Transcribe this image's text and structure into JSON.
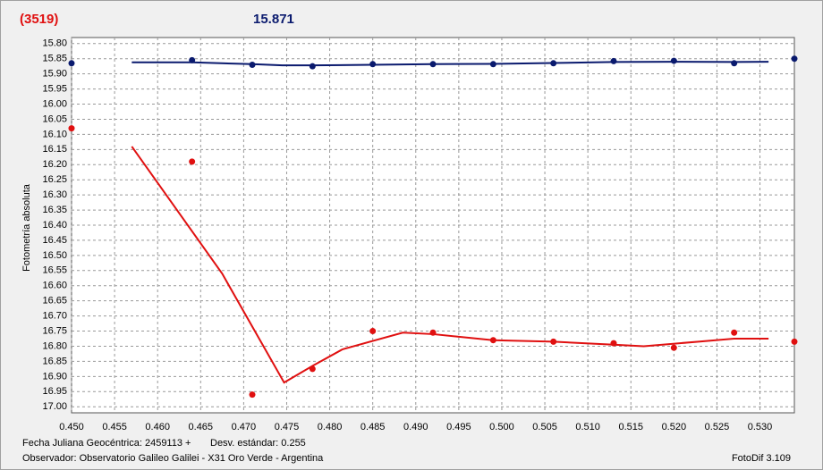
{
  "chart_data": {
    "type": "scatter-line",
    "header": {
      "object": "(3519)",
      "magnitude": "15.871"
    },
    "ylabel": "Fotometría absoluta",
    "footer": {
      "date_label": "Fecha Juliana Geocéntrica: 2459113 +",
      "std": "Desv. estándar: 0.255",
      "observer": "Observador: Observatorio Galileo Galilei - X31 Oro Verde - Argentina",
      "software": "FotoDif 3.109"
    },
    "xlim": [
      0.45,
      0.534
    ],
    "ylim": [
      15.78,
      17.02
    ],
    "y_inverted": true,
    "grid": true,
    "xticks": [
      {
        "value": 0.45,
        "label": "0.450"
      },
      {
        "value": 0.455,
        "label": "0.455"
      },
      {
        "value": 0.46,
        "label": "0.460"
      },
      {
        "value": 0.465,
        "label": "0.465"
      },
      {
        "value": 0.47,
        "label": "0.470"
      },
      {
        "value": 0.475,
        "label": "0.475"
      },
      {
        "value": 0.48,
        "label": "0.480"
      },
      {
        "value": 0.485,
        "label": "0.485"
      },
      {
        "value": 0.49,
        "label": "0.490"
      },
      {
        "value": 0.495,
        "label": "0.495"
      },
      {
        "value": 0.5,
        "label": "0.500"
      },
      {
        "value": 0.505,
        "label": "0.505"
      },
      {
        "value": 0.51,
        "label": "0.510"
      },
      {
        "value": 0.515,
        "label": "0.515"
      },
      {
        "value": 0.52,
        "label": "0.520"
      },
      {
        "value": 0.525,
        "label": "0.525"
      },
      {
        "value": 0.53,
        "label": "0.530"
      }
    ],
    "yticks": [
      {
        "value": 15.8,
        "label": "15.80"
      },
      {
        "value": 15.85,
        "label": "15.85"
      },
      {
        "value": 15.9,
        "label": "15.90"
      },
      {
        "value": 15.95,
        "label": "15.95"
      },
      {
        "value": 16.0,
        "label": "16.00"
      },
      {
        "value": 16.05,
        "label": "16.05"
      },
      {
        "value": 16.1,
        "label": "16.10"
      },
      {
        "value": 16.15,
        "label": "16.15"
      },
      {
        "value": 16.2,
        "label": "16.20"
      },
      {
        "value": 16.25,
        "label": "16.25"
      },
      {
        "value": 16.3,
        "label": "16.30"
      },
      {
        "value": 16.35,
        "label": "16.35"
      },
      {
        "value": 16.4,
        "label": "16.40"
      },
      {
        "value": 16.45,
        "label": "16.45"
      },
      {
        "value": 16.5,
        "label": "16.50"
      },
      {
        "value": 16.55,
        "label": "16.55"
      },
      {
        "value": 16.6,
        "label": "16.60"
      },
      {
        "value": 16.65,
        "label": "16.65"
      },
      {
        "value": 16.7,
        "label": "16.70"
      },
      {
        "value": 16.75,
        "label": "16.75"
      },
      {
        "value": 16.8,
        "label": "16.80"
      },
      {
        "value": 16.85,
        "label": "16.85"
      },
      {
        "value": 16.9,
        "label": "16.90"
      },
      {
        "value": 16.95,
        "label": "16.95"
      },
      {
        "value": 17.0,
        "label": "17.00"
      }
    ],
    "series": [
      {
        "style": "markers",
        "color": "#0a1a6e",
        "x": [
          0.45,
          0.464,
          0.471,
          0.478,
          0.485,
          0.492,
          0.499,
          0.506,
          0.513,
          0.52,
          0.527,
          0.534
        ],
        "values": [
          15.865,
          15.855,
          15.87,
          15.875,
          15.868,
          15.868,
          15.868,
          15.865,
          15.858,
          15.857,
          15.865,
          15.85
        ]
      },
      {
        "style": "line",
        "color": "#0a1a6e",
        "x": [
          0.457,
          0.464,
          0.471,
          0.4745,
          0.478,
          0.485,
          0.492,
          0.499,
          0.506,
          0.513,
          0.52,
          0.527,
          0.531
        ],
        "values": [
          15.862,
          15.862,
          15.868,
          15.872,
          15.872,
          15.87,
          15.868,
          15.867,
          15.864,
          15.861,
          15.86,
          15.861,
          15.86
        ]
      },
      {
        "style": "markers",
        "color": "#e01010",
        "x": [
          0.45,
          0.464,
          0.471,
          0.478,
          0.485,
          0.492,
          0.499,
          0.506,
          0.513,
          0.52,
          0.527,
          0.534
        ],
        "values": [
          16.08,
          16.19,
          16.96,
          16.875,
          16.75,
          16.755,
          16.78,
          16.785,
          16.79,
          16.805,
          16.755,
          16.785
        ]
      },
      {
        "style": "line",
        "color": "#e01010",
        "x": [
          0.457,
          0.4675,
          0.4747,
          0.478,
          0.4815,
          0.4885,
          0.492,
          0.499,
          0.506,
          0.513,
          0.5165,
          0.527,
          0.531
        ],
        "values": [
          16.14,
          16.56,
          16.92,
          16.865,
          16.81,
          16.755,
          16.76,
          16.78,
          16.785,
          16.795,
          16.8,
          16.775,
          16.775
        ]
      }
    ]
  }
}
